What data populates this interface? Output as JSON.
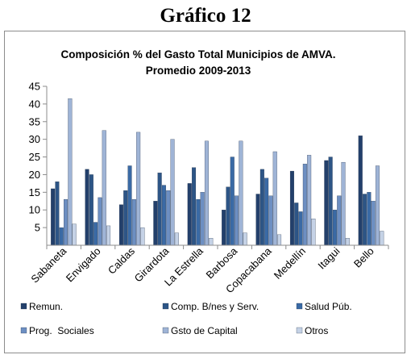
{
  "figure_label": "Gráfico 12",
  "chart_data": {
    "type": "bar",
    "title": "Composición % del Gasto Total Municipios de AMVA.",
    "subtitle": "Promedio 2009-2013",
    "xlabel": "",
    "ylabel": "",
    "ylim": [
      0,
      45
    ],
    "yticks": [
      5,
      10,
      15,
      20,
      25,
      30,
      35,
      40,
      45
    ],
    "grid": false,
    "legend_position": "bottom",
    "categories": [
      "Sabaneta",
      "Envigado",
      "Caldas",
      "Girardota",
      "La Estrella",
      "Barbosa",
      "Copacabana",
      "Medellín",
      "Itagui",
      "Bello"
    ],
    "series": [
      {
        "name": "Remun.",
        "color": "#23406b",
        "values": [
          16,
          21.5,
          11.5,
          12.5,
          17.5,
          10,
          14.5,
          21,
          24,
          31
        ]
      },
      {
        "name": "Comp. B/nes y Serv.",
        "color": "#2d5586",
        "values": [
          18,
          20,
          15.5,
          20.5,
          22,
          16.5,
          21.5,
          12,
          25,
          14.5
        ]
      },
      {
        "name": "Salud Púb.",
        "color": "#3a6aa5",
        "values": [
          5,
          6.5,
          22.5,
          17,
          13,
          25,
          19,
          9.5,
          10,
          15
        ]
      },
      {
        "name": "Prog.  Sociales",
        "color": "#6d8fc2",
        "values": [
          13,
          13.5,
          13,
          15.5,
          15,
          14,
          14,
          23,
          14,
          12.5
        ]
      },
      {
        "name": "Gsto de Capital",
        "color": "#9fb4d6",
        "values": [
          41.5,
          32.5,
          32,
          30,
          29.5,
          29.5,
          26.5,
          25.5,
          23.5,
          22.5
        ]
      },
      {
        "name": "Otros",
        "color": "#c5d2e6",
        "values": [
          6,
          5.5,
          5,
          3.5,
          2,
          3.5,
          3,
          7.5,
          2,
          4
        ]
      }
    ]
  }
}
